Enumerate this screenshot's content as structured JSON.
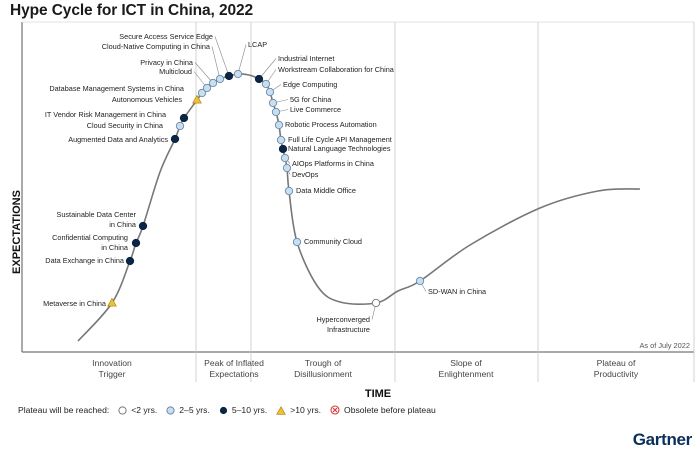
{
  "title": "Hype Cycle for ICT in China, 2022",
  "axes": {
    "y": "EXPECTATIONS",
    "x": "TIME"
  },
  "as_of": "As of July 2022",
  "phases": [
    {
      "line1": "Innovation",
      "line2": "Trigger"
    },
    {
      "line1": "Peak of Inflated",
      "line2": "Expectations"
    },
    {
      "line1": "Trough of",
      "line2": "Disillusionment"
    },
    {
      "line1": "Slope of",
      "line2": "Enlightenment"
    },
    {
      "line1": "Plateau of",
      "line2": "Productivity"
    }
  ],
  "legend": {
    "label": "Plateau will be reached:",
    "items": [
      {
        "key": "lt2",
        "text": "<2 yrs."
      },
      {
        "key": "2to5",
        "text": "2–5 yrs."
      },
      {
        "key": "5to10",
        "text": "5–10 yrs."
      },
      {
        "key": "gt10",
        "text": ">10 yrs."
      },
      {
        "key": "obsolete",
        "text": "Obsolete before plateau"
      }
    ]
  },
  "colors": {
    "lt2": "#ffffff",
    "2to5": "#c8dff0",
    "5to10": "#0b2545",
    "gt10": "#f2c12e",
    "obsolete": "#d93a3a",
    "curve": "#777777"
  },
  "brand": "Gartner",
  "technologies": [
    {
      "name": "Metaverse in China",
      "t": 0.21,
      "plateau": "gt10"
    },
    {
      "name": "Data Exchange in China",
      "t": 0.305,
      "plateau": "5to10"
    },
    {
      "name": "Confidential Computing in China",
      "t": 0.33,
      "plateau": "5to10"
    },
    {
      "name": "Sustainable Data Center in China",
      "t": 0.355,
      "plateau": "5to10"
    },
    {
      "name": "Augmented Data and Analytics",
      "t": 0.625,
      "plateau": "5to10"
    },
    {
      "name": "Cloud Security in China",
      "t": 0.665,
      "plateau": "2to5"
    },
    {
      "name": "IT Vendor Risk Management in China",
      "t": 0.69,
      "plateau": "5to10"
    },
    {
      "name": "Autonomous Vehicles",
      "t": 0.83,
      "plateau": "gt10"
    },
    {
      "name": "Database Management Systems in China",
      "t": 0.86,
      "plateau": "2to5"
    },
    {
      "name": "Multicloud",
      "t": 0.89,
      "plateau": "2to5"
    },
    {
      "name": "Privacy in China",
      "t": 0.915,
      "plateau": "2to5"
    },
    {
      "name": "Cloud-Native Computing in China",
      "t": 0.94,
      "plateau": "2to5"
    },
    {
      "name": "Secure Access Service Edge",
      "t": 0.965,
      "plateau": "5to10"
    },
    {
      "name": "LCAP",
      "t": 0.985,
      "plateau": "2to5"
    },
    {
      "name": "Industrial Internet",
      "t": 1.012,
      "plateau": "5to10"
    },
    {
      "name": "Workstream Collaboration for China",
      "t": 1.03,
      "plateau": "2to5"
    },
    {
      "name": "Edge Computing",
      "t": 1.055,
      "plateau": "2to5"
    },
    {
      "name": "5G for China",
      "t": 1.08,
      "plateau": "2to5"
    },
    {
      "name": "Live Commerce",
      "t": 1.1,
      "plateau": "2to5"
    },
    {
      "name": "Robotic Process Automation",
      "t": 1.15,
      "plateau": "2to5"
    },
    {
      "name": "Full Life Cycle API Management",
      "t": 1.205,
      "plateau": "2to5"
    },
    {
      "name": "Natural Language Technologies",
      "t": 1.225,
      "plateau": "5to10"
    },
    {
      "name": "AIOps Platforms in China",
      "t": 1.25,
      "plateau": "2to5"
    },
    {
      "name": "DevOps",
      "t": 1.275,
      "plateau": "2to5"
    },
    {
      "name": "Data Middle Office",
      "t": 1.32,
      "plateau": "2to5"
    },
    {
      "name": "Community Cloud",
      "t": 1.5,
      "plateau": "2to5"
    },
    {
      "name": "Hyperconverged Infrastructure",
      "t": 1.92,
      "plateau": "lt2"
    },
    {
      "name": "SD-WAN in China",
      "t": 2.25,
      "plateau": "2to5"
    }
  ]
}
